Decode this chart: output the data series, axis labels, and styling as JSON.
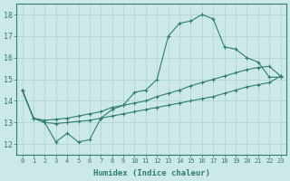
{
  "line1_x": [
    0,
    1,
    2,
    3,
    4,
    5,
    6,
    7,
    8,
    9,
    10,
    11,
    12,
    13,
    14,
    15,
    16,
    17,
    18,
    19,
    20,
    21,
    22,
    23
  ],
  "line1_y": [
    14.5,
    13.2,
    13.0,
    12.1,
    12.5,
    12.1,
    12.2,
    13.2,
    13.6,
    13.8,
    14.4,
    14.5,
    15.0,
    17.0,
    17.6,
    17.7,
    18.0,
    17.8,
    16.5,
    16.4,
    16.0,
    15.8,
    15.1,
    15.1
  ],
  "line2_x": [
    0,
    1,
    2,
    3,
    4,
    5,
    6,
    7,
    8,
    9,
    10,
    11,
    12,
    13,
    14,
    15,
    16,
    17,
    18,
    19,
    20,
    21,
    22,
    23
  ],
  "line2_y": [
    14.5,
    13.2,
    13.1,
    13.15,
    13.2,
    13.3,
    13.4,
    13.5,
    13.7,
    13.8,
    13.9,
    14.0,
    14.2,
    14.35,
    14.5,
    14.7,
    14.85,
    15.0,
    15.15,
    15.3,
    15.45,
    15.55,
    15.6,
    15.15
  ],
  "line3_x": [
    0,
    1,
    2,
    3,
    4,
    5,
    6,
    7,
    8,
    9,
    10,
    11,
    12,
    13,
    14,
    15,
    16,
    17,
    18,
    19,
    20,
    21,
    22,
    23
  ],
  "line3_y": [
    14.5,
    13.2,
    13.0,
    12.95,
    13.0,
    13.05,
    13.1,
    13.2,
    13.3,
    13.4,
    13.5,
    13.6,
    13.7,
    13.8,
    13.9,
    14.0,
    14.1,
    14.2,
    14.35,
    14.5,
    14.65,
    14.75,
    14.85,
    15.15
  ],
  "line_color": "#2e7d6e",
  "bg_color": "#cce8e8",
  "grid_color": "#b0d4d4",
  "xlabel": "Humidex (Indice chaleur)",
  "ylim": [
    11.5,
    18.5
  ],
  "xlim": [
    -0.5,
    23.5
  ],
  "yticks": [
    12,
    13,
    14,
    15,
    16,
    17,
    18
  ],
  "xticks": [
    0,
    1,
    2,
    3,
    4,
    5,
    6,
    7,
    8,
    9,
    10,
    11,
    12,
    13,
    14,
    15,
    16,
    17,
    18,
    19,
    20,
    21,
    22,
    23
  ],
  "marker": "+",
  "markersize": 3.5,
  "linewidth": 0.8
}
